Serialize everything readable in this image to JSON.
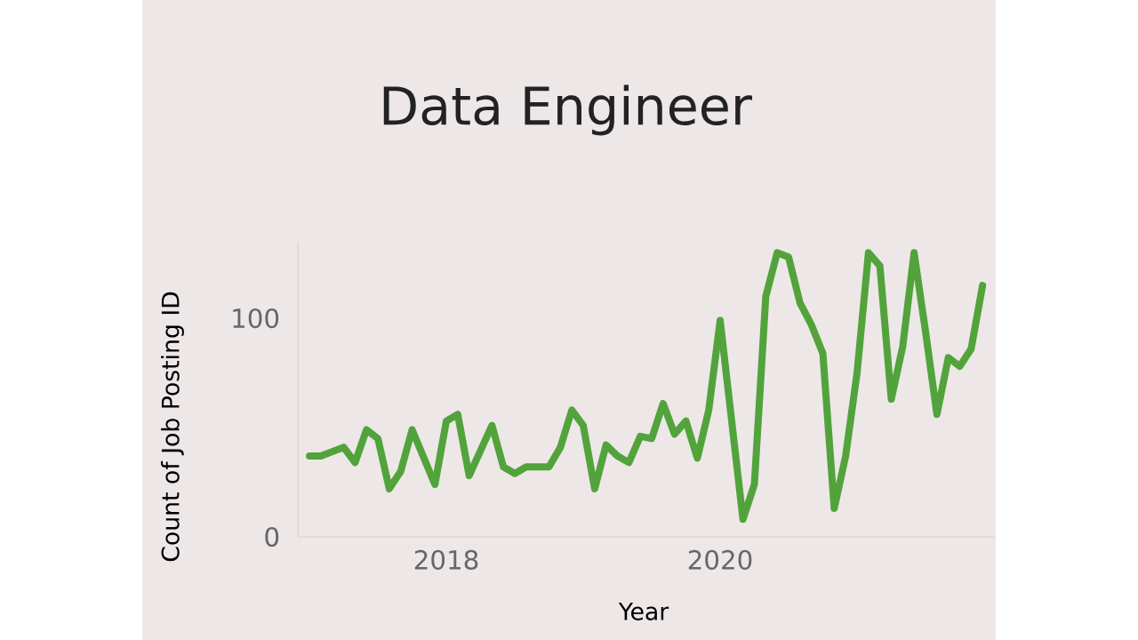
{
  "chart_data": {
    "type": "line",
    "title": "Data Engineer",
    "xlabel": "Year",
    "ylabel": "Count of Job Posting ID",
    "x": [
      "2017-01",
      "2017-02",
      "2017-04",
      "2017-05",
      "2017-06",
      "2017-07",
      "2017-08",
      "2017-09",
      "2017-10",
      "2017-12",
      "2018-01",
      "2018-02",
      "2018-03",
      "2018-05",
      "2018-06",
      "2018-07",
      "2018-08",
      "2018-10",
      "2018-11",
      "2018-12",
      "2019-01",
      "2019-02",
      "2019-03",
      "2019-04",
      "2019-05",
      "2019-06",
      "2019-07",
      "2019-08",
      "2019-09",
      "2019-10",
      "2019-11",
      "2019-12",
      "2020-01",
      "2020-03",
      "2020-04",
      "2020-05",
      "2020-06",
      "2020-07",
      "2020-08",
      "2020-09",
      "2020-10",
      "2020-11",
      "2020-12",
      "2021-01",
      "2021-02",
      "2021-03",
      "2021-04",
      "2021-05",
      "2021-06",
      "2021-07",
      "2021-08",
      "2021-09",
      "2021-10",
      "2021-11",
      "2021-12"
    ],
    "series": [
      {
        "color": "#52a33c",
        "values": [
          37,
          37,
          41,
          34,
          49,
          45,
          22,
          30,
          49,
          24,
          53,
          56,
          28,
          51,
          32,
          29,
          32,
          32,
          41,
          58,
          51,
          22,
          42,
          37,
          34,
          46,
          45,
          61,
          47,
          53,
          36,
          58,
          99,
          8,
          24,
          110,
          130,
          128,
          107,
          97,
          84,
          13,
          37,
          75,
          130,
          124,
          63,
          87,
          130,
          94,
          56,
          82,
          78,
          86,
          115
        ]
      }
    ],
    "xlim": [
      "2016-12",
      "2022-01"
    ],
    "xticks": [
      "2018",
      "2020"
    ],
    "ylim": [
      0,
      135
    ],
    "yticks": [
      0,
      100
    ],
    "line_style": "solid",
    "marker": "none",
    "legend": false,
    "grid": false
  }
}
